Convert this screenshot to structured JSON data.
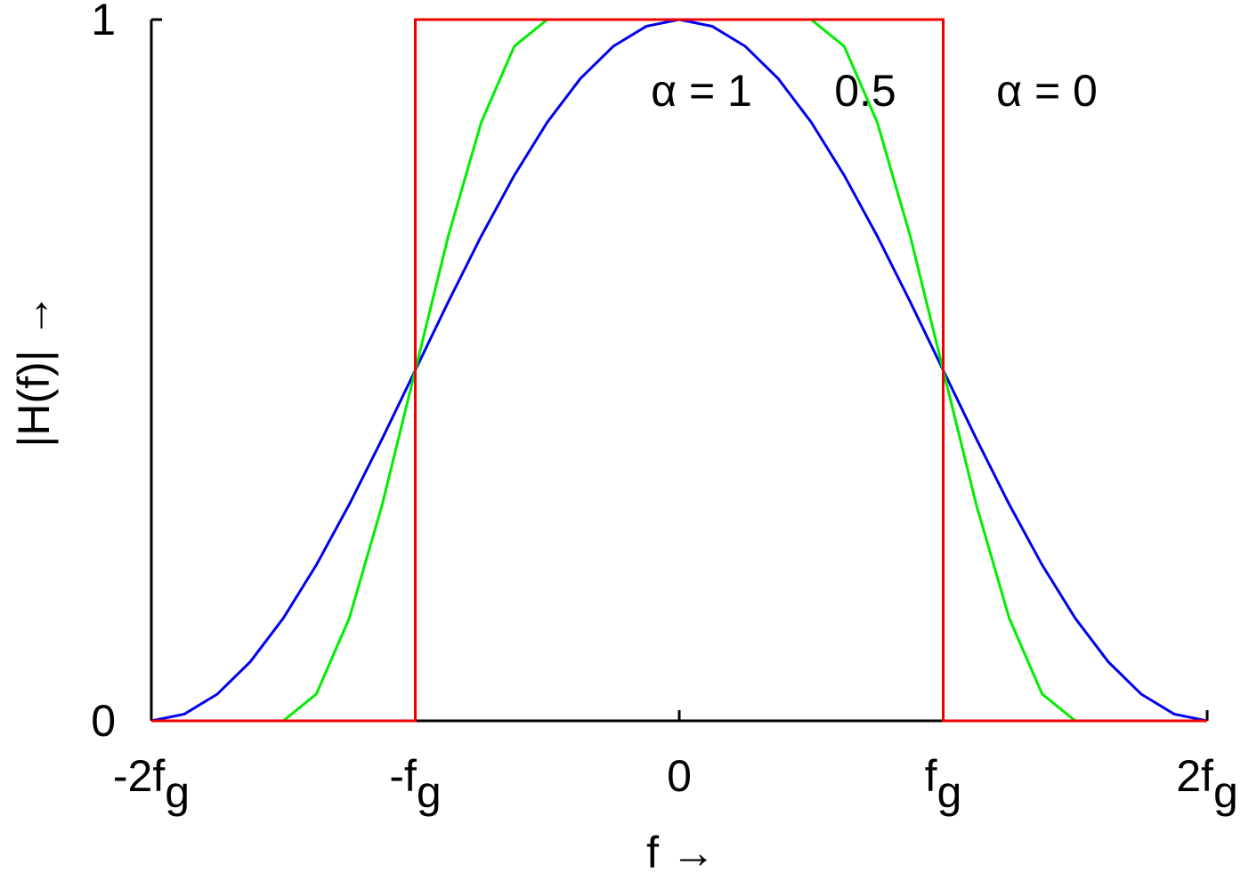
{
  "chart_data": {
    "type": "line",
    "xlabel": "f →",
    "ylabel": "|H(f)| →",
    "xlim": [
      -2,
      2
    ],
    "ylim": [
      0,
      1
    ],
    "xticks": [
      {
        "value": -2,
        "label": "-2f",
        "sub": "g"
      },
      {
        "value": -1,
        "label": "-f",
        "sub": "g"
      },
      0,
      {
        "value": 1,
        "label": "f",
        "sub": "g"
      },
      {
        "value": 2,
        "label": "2f",
        "sub": "g"
      }
    ],
    "yticks": [
      0,
      1
    ],
    "series": [
      {
        "name": "α = 1",
        "color": "#0000ee",
        "x": [
          -2,
          -1.875,
          -1.75,
          -1.625,
          -1.5,
          -1.375,
          -1.25,
          -1.125,
          -1,
          -0.875,
          -0.75,
          -0.625,
          -0.5,
          -0.375,
          -0.25,
          -0.125,
          0,
          0.125,
          0.25,
          0.375,
          0.5,
          0.625,
          0.75,
          0.875,
          1,
          1.125,
          1.25,
          1.375,
          1.5,
          1.625,
          1.75,
          1.875,
          2
        ],
        "values": [
          0,
          0.0096,
          0.0381,
          0.0843,
          0.1464,
          0.2222,
          0.3087,
          0.4025,
          0.5,
          0.5975,
          0.6913,
          0.7778,
          0.8536,
          0.9157,
          0.9619,
          0.9904,
          1,
          0.9904,
          0.9619,
          0.9157,
          0.8536,
          0.7778,
          0.6913,
          0.5975,
          0.5,
          0.4025,
          0.3087,
          0.2222,
          0.1464,
          0.0843,
          0.0381,
          0.0096,
          0
        ]
      },
      {
        "name": "0.5",
        "color": "#00ee00",
        "x": [
          -2,
          -1.875,
          -1.75,
          -1.625,
          -1.5,
          -1.375,
          -1.25,
          -1.125,
          -1,
          -0.875,
          -0.75,
          -0.625,
          -0.5,
          -0.375,
          -0.25,
          -0.125,
          0,
          0.125,
          0.25,
          0.375,
          0.5,
          0.625,
          0.75,
          0.875,
          1,
          1.125,
          1.25,
          1.375,
          1.5,
          1.625,
          1.75,
          1.875,
          2
        ],
        "values": [
          0,
          0,
          0,
          0,
          0,
          0.0381,
          0.1464,
          0.3087,
          0.5,
          0.6913,
          0.8536,
          0.9619,
          1,
          1,
          1,
          1,
          1,
          1,
          1,
          1,
          1,
          0.9619,
          0.8536,
          0.6913,
          0.5,
          0.3087,
          0.1464,
          0.0381,
          0,
          0,
          0,
          0,
          0
        ]
      },
      {
        "name": "α = 0",
        "color": "#ee0000",
        "x": [
          -2,
          -1,
          -1,
          1,
          1,
          2
        ],
        "values": [
          0,
          0,
          1,
          1,
          0,
          0
        ]
      }
    ]
  }
}
